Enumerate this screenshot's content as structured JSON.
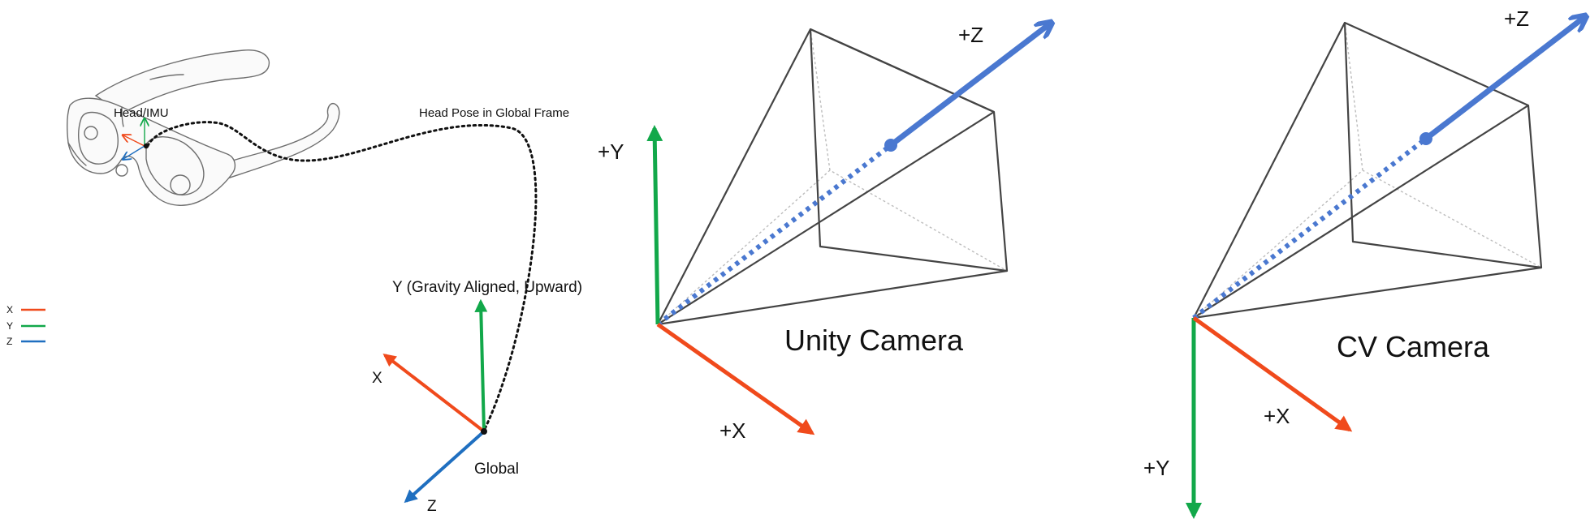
{
  "colors": {
    "x_axis": "#f04a1c",
    "y_axis": "#12a84a",
    "z_axis": "#1f6fc0",
    "camera_z": "#4a78d0",
    "path": "#111111",
    "frustum": "#444444"
  },
  "legend": {
    "items": [
      {
        "label": "X",
        "color": "#f04a1c"
      },
      {
        "label": "Y",
        "color": "#12a84a"
      },
      {
        "label": "Z",
        "color": "#1f6fc0"
      }
    ]
  },
  "head_pose": {
    "head_label": "Head/IMU",
    "path_label": "Head Pose in Global Frame",
    "global_label": "Global",
    "global_y_label": "Y (Gravity Aligned, Upward)",
    "global_x_label": "X",
    "global_z_label": "Z",
    "device_icon": "ar-glasses-icon"
  },
  "unity_camera": {
    "title": "Unity Camera",
    "x_label": "+X",
    "y_label": "+Y",
    "z_label": "+Z"
  },
  "cv_camera": {
    "title": "CV Camera",
    "x_label": "+X",
    "y_label": "+Y",
    "z_label": "+Z"
  }
}
